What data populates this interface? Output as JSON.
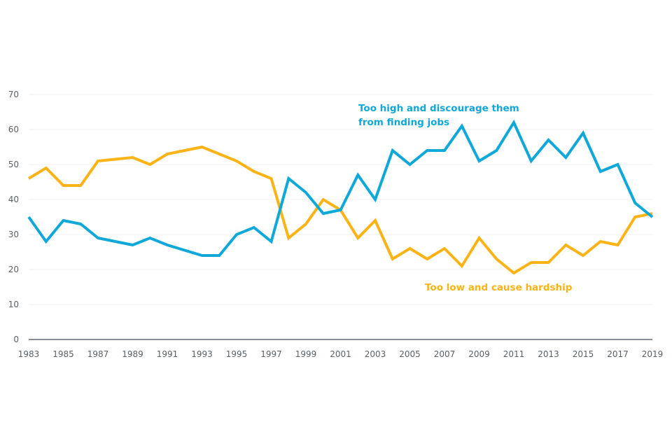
{
  "chart_data": {
    "type": "line",
    "title": "",
    "xlabel": "",
    "ylabel": "",
    "ylim": [
      0,
      70
    ],
    "xlim": [
      1983,
      2019
    ],
    "grid": true,
    "y_ticks": [
      0,
      10,
      20,
      30,
      40,
      50,
      60,
      70
    ],
    "x_ticks": [
      1983,
      1985,
      1987,
      1989,
      1991,
      1993,
      1995,
      1997,
      1999,
      2001,
      2003,
      2005,
      2007,
      2009,
      2011,
      2013,
      2015,
      2017,
      2019
    ],
    "x": [
      1983,
      1984,
      1985,
      1986,
      1987,
      1988,
      1989,
      1990,
      1991,
      1992,
      1993,
      1994,
      1995,
      1996,
      1997,
      1998,
      1999,
      2000,
      2001,
      2002,
      2003,
      2004,
      2005,
      2006,
      2007,
      2008,
      2009,
      2010,
      2011,
      2012,
      2013,
      2014,
      2015,
      2016,
      2017,
      2018,
      2019
    ],
    "series": [
      {
        "name": "Too high and discourage them from finding jobs",
        "color": "#0fa8d8",
        "values": [
          35,
          28,
          34,
          33,
          29,
          28,
          27,
          29,
          27,
          25.5,
          24,
          24,
          30,
          32,
          28,
          46,
          42,
          36,
          37,
          47,
          40,
          54,
          50,
          54,
          54,
          61,
          51,
          54,
          62,
          51,
          57,
          52,
          59,
          48,
          50,
          39,
          35
        ]
      },
      {
        "name": "Too low and cause hardship",
        "color": "#fbb316",
        "values": [
          46,
          49,
          44,
          44,
          51,
          51.5,
          52,
          50,
          53,
          54,
          55,
          53,
          51,
          48,
          46,
          29,
          33,
          40,
          37,
          29,
          34,
          23,
          26,
          23,
          26,
          21,
          29,
          23,
          19,
          22,
          22,
          27,
          24,
          28,
          27,
          35,
          36
        ]
      }
    ],
    "annotations": [
      {
        "series": 0,
        "lines": [
          "Too high and discourage them",
          "from finding jobs"
        ],
        "position": "top-center-right"
      },
      {
        "series": 1,
        "lines": [
          "Too low and cause hardship"
        ],
        "position": "bottom-center-right"
      }
    ],
    "legend": "none (direct labels)"
  }
}
